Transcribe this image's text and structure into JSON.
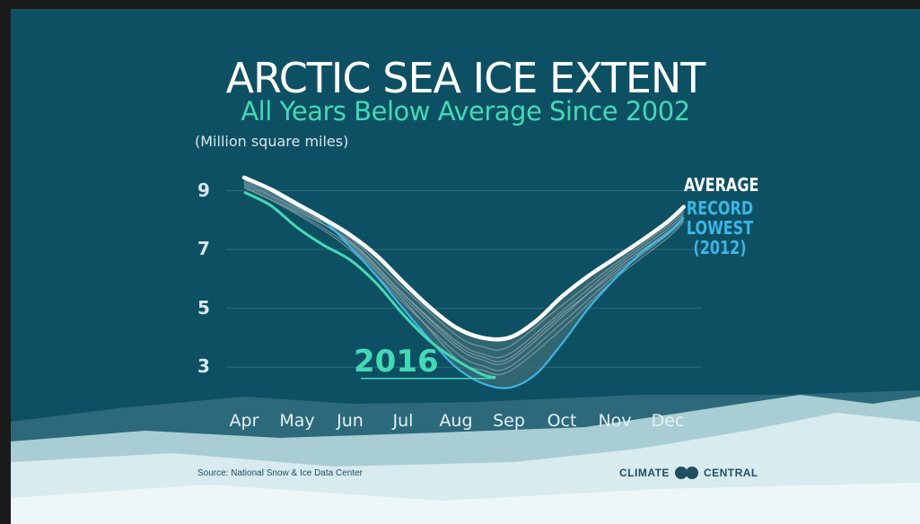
{
  "colors": {
    "background": "#0e5063",
    "average": "#ffffff",
    "record_lowest": "#3bb6e6",
    "year_2016": "#43d9b5",
    "other_years": "#8fa7ae",
    "band": "#3f6e78"
  },
  "source": "Source: National Snow & Ice Data Center",
  "logo": {
    "left": "CLIMATE",
    "right": "CENTRAL"
  },
  "chart_data": {
    "type": "line",
    "title": "ARCTIC SEA ICE EXTENT",
    "subtitle": "All Years Below Average Since 2002",
    "ylabel": "(Million square miles)",
    "ylim": [
      2.0,
      9.75
    ],
    "yticks": [
      9,
      7,
      5,
      3
    ],
    "categories": [
      "Apr",
      "May",
      "Jun",
      "Jul",
      "Aug",
      "Sep",
      "Oct",
      "Nov",
      "Dec"
    ],
    "grid": true,
    "labels": {
      "average": "AVERAGE",
      "record": [
        "RECORD",
        "LOWEST",
        "(2012)"
      ],
      "year_2016": "2016"
    },
    "series": [
      {
        "name": "AVERAGE",
        "x": [
          0,
          0.5,
          1,
          1.5,
          2,
          2.5,
          3,
          3.5,
          4,
          4.5,
          5,
          5.5,
          6,
          6.5,
          7,
          7.5,
          8,
          8.3
        ],
        "y": [
          9.45,
          9.05,
          8.55,
          8.05,
          7.5,
          6.8,
          5.9,
          5.05,
          4.35,
          4.0,
          4.0,
          4.55,
          5.4,
          6.1,
          6.7,
          7.3,
          7.95,
          8.45
        ]
      },
      {
        "name": "RECORD LOWEST (2012)",
        "x": [
          0.5,
          1,
          1.5,
          2,
          2.5,
          3,
          3.5,
          4,
          4.5,
          5,
          5.5,
          6,
          6.5,
          7,
          7.5,
          8,
          8.3
        ],
        "y": [
          9.0,
          8.5,
          8.0,
          7.1,
          6.1,
          5.0,
          3.95,
          3.0,
          2.45,
          2.3,
          2.75,
          3.8,
          5.0,
          6.0,
          6.9,
          7.55,
          8.1
        ]
      },
      {
        "name": "2016",
        "x": [
          0,
          0.5,
          1,
          1.5,
          2,
          2.5,
          3,
          3.5,
          4,
          4.5,
          4.75
        ],
        "y": [
          8.95,
          8.5,
          7.75,
          7.15,
          6.65,
          5.85,
          4.8,
          3.9,
          3.25,
          2.75,
          2.65
        ]
      }
    ],
    "other_years": [
      {
        "x": [
          0,
          1,
          2,
          3,
          4,
          4.5,
          5,
          6,
          7,
          8,
          8.3
        ],
        "y": [
          9.3,
          8.4,
          7.4,
          5.7,
          4.1,
          3.7,
          3.7,
          5.1,
          6.5,
          7.8,
          8.3
        ]
      },
      {
        "x": [
          0,
          1,
          2,
          3,
          4,
          4.5,
          5,
          6,
          7,
          8,
          8.3
        ],
        "y": [
          9.2,
          8.3,
          7.3,
          5.5,
          3.9,
          3.45,
          3.45,
          4.9,
          6.4,
          7.7,
          8.2
        ]
      },
      {
        "x": [
          0,
          1,
          2,
          3,
          4,
          4.5,
          5,
          6,
          7,
          8,
          8.3
        ],
        "y": [
          9.35,
          8.45,
          7.2,
          5.4,
          3.7,
          3.25,
          3.2,
          4.7,
          6.3,
          7.6,
          8.1
        ]
      },
      {
        "x": [
          0,
          1,
          2,
          3,
          4,
          4.5,
          5,
          6,
          7,
          8,
          8.3
        ],
        "y": [
          9.15,
          8.2,
          7.0,
          5.2,
          3.5,
          3.05,
          3.0,
          4.5,
          6.1,
          7.5,
          8.0
        ]
      },
      {
        "x": [
          0,
          1,
          2,
          3,
          4,
          4.5,
          5,
          6,
          7,
          8,
          8.3
        ],
        "y": [
          9.1,
          8.25,
          7.1,
          5.3,
          3.3,
          2.9,
          2.85,
          4.3,
          6.0,
          7.4,
          7.95
        ]
      },
      {
        "x": [
          0,
          1,
          2,
          3,
          4,
          4.5,
          5,
          6,
          7,
          8,
          8.3
        ],
        "y": [
          9.25,
          8.35,
          7.25,
          5.5,
          3.8,
          3.35,
          3.3,
          4.8,
          6.2,
          7.55,
          8.05
        ]
      }
    ]
  }
}
